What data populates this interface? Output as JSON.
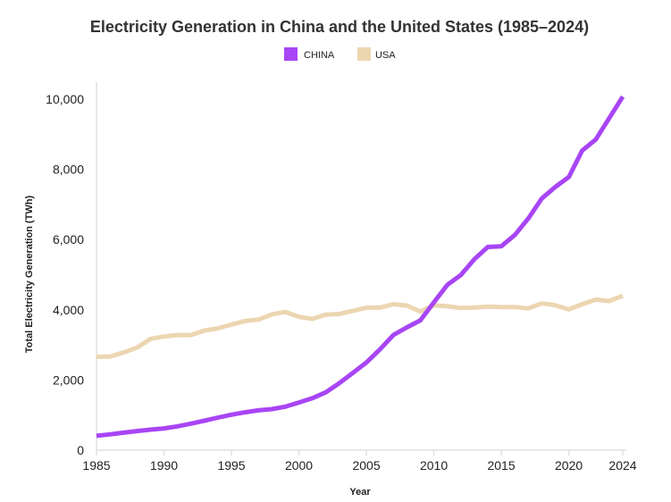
{
  "chart_data": {
    "type": "line",
    "title": "Electricity Generation in China and the United States (1985–2024)",
    "xlabel": "Year",
    "ylabel": "Total Electricity Generation (TWh)",
    "xlim": [
      1985,
      2024
    ],
    "ylim": [
      0,
      10500
    ],
    "x_ticks": [
      1985,
      1990,
      1995,
      2000,
      2005,
      2010,
      2015,
      2020,
      2024
    ],
    "y_ticks": [
      0,
      2000,
      4000,
      6000,
      8000,
      10000
    ],
    "y_tick_labels": [
      "0",
      "2,000",
      "4,000",
      "6,000",
      "8,000",
      "10,000"
    ],
    "grid": false,
    "legend_position": "top-center",
    "x": [
      1985,
      1986,
      1987,
      1988,
      1989,
      1990,
      1991,
      1992,
      1993,
      1994,
      1995,
      1996,
      1997,
      1998,
      1999,
      2000,
      2001,
      2002,
      2003,
      2004,
      2005,
      2006,
      2007,
      2008,
      2009,
      2010,
      2011,
      2012,
      2013,
      2014,
      2015,
      2016,
      2017,
      2018,
      2019,
      2020,
      2021,
      2022,
      2023,
      2024
    ],
    "series": [
      {
        "name": "CHINA",
        "color": "#a845f5",
        "values": [
          410,
          450,
          500,
          545,
          585,
          620,
          680,
          755,
          840,
          930,
          1010,
          1080,
          1135,
          1170,
          1240,
          1360,
          1480,
          1650,
          1910,
          2200,
          2500,
          2870,
          3280,
          3500,
          3700,
          4210,
          4710,
          4990,
          5440,
          5790,
          5810,
          6130,
          6600,
          7170,
          7500,
          7780,
          8540,
          8850,
          9460,
          10070
        ]
      },
      {
        "name": "USA",
        "color": "#ecd6b1",
        "values": [
          2660,
          2670,
          2780,
          2920,
          3170,
          3240,
          3280,
          3280,
          3410,
          3470,
          3580,
          3680,
          3720,
          3870,
          3940,
          3800,
          3740,
          3860,
          3880,
          3970,
          4060,
          4060,
          4160,
          4120,
          3950,
          4130,
          4100,
          4050,
          4060,
          4090,
          4080,
          4080,
          4040,
          4180,
          4130,
          4010,
          4160,
          4290,
          4250,
          4400
        ]
      }
    ]
  }
}
